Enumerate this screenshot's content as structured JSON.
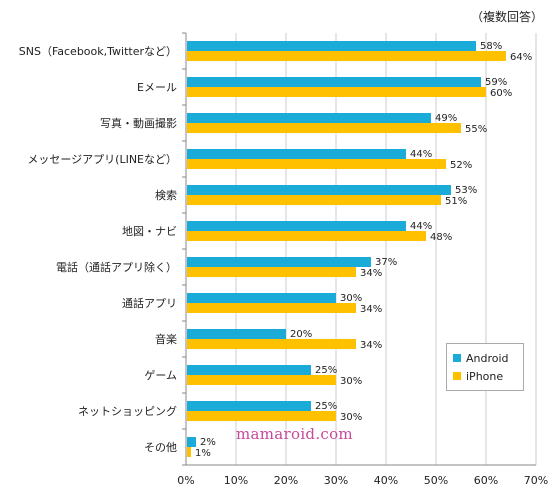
{
  "note": "（複数回答）",
  "watermark": "mamaroid.com",
  "colors": {
    "android": "#1aabd9",
    "iphone": "#ffc000",
    "grid": "#cccccc",
    "axis": "#888888"
  },
  "chart_data": {
    "type": "bar",
    "orientation": "horizontal",
    "categories": [
      "SNS（Facebook,Twitterなど）",
      "Eメール",
      "写真・動画撮影",
      "メッセージアプリ(LINEなど）",
      "検索",
      "地図・ナビ",
      "電話（通話アプリ除く）",
      "通話アプリ",
      "音楽",
      "ゲーム",
      "ネットショッピング",
      "その他"
    ],
    "series": [
      {
        "name": "Android",
        "values": [
          58,
          59,
          49,
          44,
          53,
          44,
          37,
          30,
          20,
          25,
          25,
          2
        ]
      },
      {
        "name": "iPhone",
        "values": [
          64,
          60,
          55,
          52,
          51,
          48,
          34,
          34,
          34,
          30,
          30,
          1
        ]
      }
    ],
    "value_labels": [
      [
        "58%",
        "59%",
        "49%",
        "44%",
        "53%",
        "44%",
        "37%",
        "30%",
        "20%",
        "25%",
        "25%",
        "2%"
      ],
      [
        "64%",
        "60%",
        "55%",
        "52%",
        "51%",
        "48%",
        "34%",
        "34%",
        "34%",
        "30%",
        "30%",
        "1%"
      ]
    ],
    "xlim": [
      0,
      70
    ],
    "xticks": [
      "0%",
      "10%",
      "20%",
      "30%",
      "40%",
      "50%",
      "60%",
      "70%"
    ],
    "grid": true,
    "legend": "bottom-right"
  }
}
